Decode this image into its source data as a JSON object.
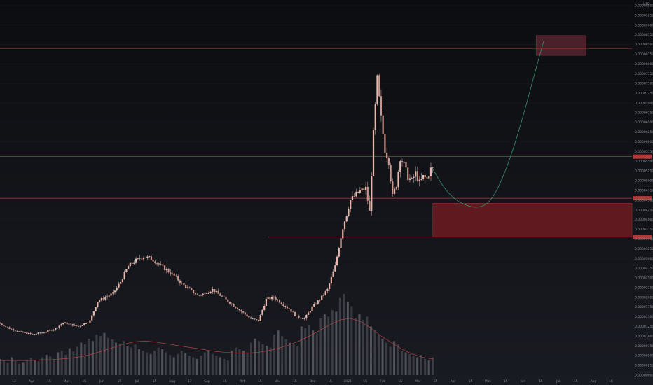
{
  "chart_data": {
    "type": "candlestick",
    "header_label": "USD",
    "colors": {
      "background": "#131419",
      "candle": "#e7b8ad",
      "wick": "#e7b8ad",
      "candle_down": "#c9968c",
      "volume": "#6a6c74",
      "volume_dark": "#4a4c54",
      "ma_line": "#c44a4a",
      "level_line": "#b03a3a",
      "zone_fill": "#6e1a1f",
      "target_zone_fill": "#5a2530",
      "projection": "#3f8f6e",
      "grid": "#1b1d23",
      "axis_text": "#8c8f99"
    },
    "x_ticks": [
      "13",
      "Apr",
      "15",
      "May",
      "15",
      "Jun",
      "15",
      "Jul",
      "15",
      "Aug",
      "17",
      "Sep",
      "15",
      "Oct",
      "15",
      "Nov",
      "15",
      "Dec",
      "15",
      "2021",
      "15",
      "Feb",
      "15",
      "Mar",
      "15",
      "Apr",
      "15",
      "May",
      "15",
      "Jun",
      "15",
      "Jul",
      "15",
      "Aug",
      "16"
    ],
    "y_ticks": [
      "0.00000000",
      "0.00000250",
      "0.00000500",
      "0.00000750",
      "0.00001000",
      "0.00001250",
      "0.00001500",
      "0.00001750",
      "0.00002000",
      "0.00002250",
      "0.00002500",
      "0.00002750",
      "0.00003000",
      "0.00003250",
      "0.00003500",
      "0.00003750",
      "0.00004000",
      "0.00004250",
      "0.00004500",
      "0.00004750",
      "0.00005000",
      "0.00005250",
      "0.00005500",
      "0.00005750",
      "0.00006000",
      "0.00006250",
      "0.00006500",
      "0.00006750",
      "0.00007000",
      "0.00007250",
      "0.00007500",
      "0.00007750",
      "0.00008000",
      "0.00008250",
      "0.00008500",
      "0.00008750",
      "0.00009000",
      "0.00009250",
      "0.00009500"
    ],
    "y_range": [
      0,
      9.5e-05
    ],
    "price_path": [
      [
        0,
        1.35e-05
      ],
      [
        3,
        1.2e-05
      ],
      [
        6,
        1.1e-05
      ],
      [
        9,
        1.05e-05
      ],
      [
        12,
        1.1e-05
      ],
      [
        15,
        1.2e-05
      ],
      [
        17,
        1.35e-05
      ],
      [
        19,
        1.3e-05
      ],
      [
        21,
        1.25e-05
      ],
      [
        24,
        1.4e-05
      ],
      [
        26,
        1.9e-05
      ],
      [
        28,
        2e-05
      ],
      [
        30,
        2.1e-05
      ],
      [
        32,
        2.4e-05
      ],
      [
        34,
        2.8e-05
      ],
      [
        36,
        2.95e-05
      ],
      [
        38,
        3.05e-05
      ],
      [
        40,
        3e-05
      ],
      [
        42,
        2.85e-05
      ],
      [
        44,
        2.7e-05
      ],
      [
        46,
        2.55e-05
      ],
      [
        48,
        2.35e-05
      ],
      [
        50,
        2.2e-05
      ],
      [
        52,
        2.05e-05
      ],
      [
        54,
        2.1e-05
      ],
      [
        56,
        2.2e-05
      ],
      [
        58,
        2.05e-05
      ],
      [
        60,
        1.9e-05
      ],
      [
        62,
        1.75e-05
      ],
      [
        64,
        1.6e-05
      ],
      [
        66,
        1.45e-05
      ],
      [
        68,
        1.4e-05
      ],
      [
        70,
        1.95e-05
      ],
      [
        72,
        2e-05
      ],
      [
        74,
        1.85e-05
      ],
      [
        76,
        1.7e-05
      ],
      [
        78,
        1.5e-05
      ],
      [
        80,
        1.45e-05
      ],
      [
        82,
        1.75e-05
      ],
      [
        84,
        1.95e-05
      ],
      [
        86,
        2.2e-05
      ],
      [
        88,
        2.8e-05
      ],
      [
        90,
        3.8e-05
      ],
      [
        92,
        4.5e-05
      ],
      [
        94,
        4.7e-05
      ],
      [
        96,
        4.8e-05
      ],
      [
        97,
        4.2e-05
      ],
      [
        98,
        6.2e-05
      ],
      [
        99,
        7.6e-05
      ],
      [
        100,
        6.6e-05
      ],
      [
        101,
        5.8e-05
      ],
      [
        102,
        5.5e-05
      ],
      [
        103,
        4.6e-05
      ],
      [
        104,
        4.9e-05
      ],
      [
        105,
        5.6e-05
      ],
      [
        106,
        5.4e-05
      ],
      [
        107,
        5.1e-05
      ],
      [
        108,
        5e-05
      ],
      [
        109,
        5.2e-05
      ],
      [
        110,
        4.95e-05
      ],
      [
        111,
        5.1e-05
      ],
      [
        112,
        5.05e-05
      ],
      [
        113,
        5.3e-05
      ]
    ],
    "volume_values": [
      20,
      18,
      15,
      22,
      17,
      14,
      16,
      18,
      21,
      19,
      17,
      22,
      25,
      23,
      20,
      28,
      30,
      25,
      33,
      29,
      35,
      40,
      38,
      45,
      42,
      50,
      48,
      52,
      46,
      44,
      40,
      38,
      42,
      36,
      34,
      38,
      32,
      30,
      28,
      26,
      30,
      34,
      32,
      28,
      25,
      22,
      26,
      30,
      27,
      24,
      22,
      20,
      24,
      28,
      30,
      26,
      24,
      22,
      20,
      18,
      30,
      34,
      32,
      30,
      28,
      40,
      45,
      42,
      38,
      36,
      34,
      50,
      55,
      48,
      44,
      40,
      38,
      36,
      60,
      58,
      62,
      55,
      52,
      70,
      75,
      72,
      80,
      78,
      95,
      100,
      90,
      85,
      70,
      75,
      68,
      72,
      60,
      55,
      50,
      45,
      40,
      35,
      42,
      38,
      30,
      28,
      26,
      24,
      22,
      25,
      20,
      18,
      22
    ],
    "volume_ma": [
      18,
      18,
      18,
      18,
      19,
      19,
      20,
      21,
      23,
      26,
      30,
      34,
      38,
      41,
      42,
      41,
      39,
      37,
      35,
      33,
      31,
      29,
      28,
      27,
      27,
      28,
      30,
      33,
      37,
      42,
      48,
      55,
      62,
      68,
      70,
      66,
      58,
      48,
      40,
      32,
      26,
      22,
      20
    ],
    "levels": [
      {
        "price": 8.4e-05,
        "x_start": 0
      },
      {
        "price": 5.62e-05,
        "x_start": 0
      },
      {
        "price": 4.55e-05,
        "x_start": 0
      },
      {
        "price": 3.55e-05,
        "x_start": 70
      }
    ],
    "demand_zone": {
      "x_start": 113,
      "x_end": 165,
      "price_low": 3.55e-05,
      "price_high": 4.42e-05
    },
    "target_zone": {
      "x_start": 140,
      "x_end": 153,
      "price_low": 8.22e-05,
      "price_high": 8.73e-05
    },
    "projection": [
      [
        113,
        5.3e-05
      ],
      [
        116,
        4.8e-05
      ],
      [
        119,
        4.5e-05
      ],
      [
        122,
        4.35e-05
      ],
      [
        125,
        4.3e-05
      ],
      [
        128,
        4.45e-05
      ],
      [
        131,
        5e-05
      ],
      [
        134,
        5.8e-05
      ],
      [
        137,
        6.8e-05
      ],
      [
        140,
        7.9e-05
      ],
      [
        142,
        8.6e-05
      ]
    ],
    "badges": [
      {
        "price": 5.62e-05,
        "color": "#b03a3a"
      },
      {
        "price": 4.55e-05,
        "color": "#b03a3a"
      },
      {
        "price": 3.55e-05,
        "color": "#b03a3a"
      }
    ]
  }
}
